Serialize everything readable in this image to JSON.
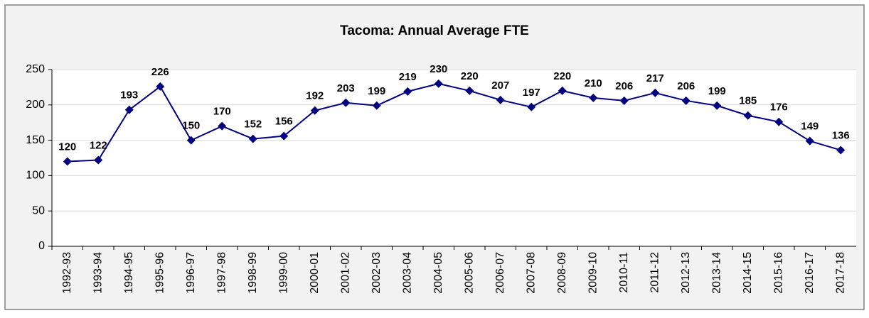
{
  "chart_data": {
    "type": "line",
    "title": "Tacoma: Annual Average FTE",
    "categories": [
      "1992-93",
      "1993-94",
      "1994-95",
      "1995-96",
      "1996-97",
      "1997-98",
      "1998-99",
      "1999-00",
      "2000-01",
      "2001-02",
      "2002-03",
      "2003-04",
      "2004-05",
      "2005-06",
      "2006-07",
      "2007-08",
      "2008-09",
      "2009-10",
      "2010-11",
      "2011-12",
      "2012-13",
      "2013-14",
      "2014-15",
      "2015-16",
      "2016-17",
      "2017-18"
    ],
    "series": [
      {
        "name": "Annual Average FTE",
        "color": "#000080",
        "values": [
          120,
          122,
          193,
          226,
          150,
          170,
          152,
          156,
          192,
          203,
          199,
          219,
          230,
          220,
          207,
          197,
          220,
          210,
          206,
          217,
          206,
          199,
          185,
          176,
          149,
          136
        ]
      }
    ],
    "ylim": [
      0,
      250
    ],
    "yticks": [
      0,
      50,
      100,
      150,
      200,
      250
    ],
    "grid": true
  }
}
